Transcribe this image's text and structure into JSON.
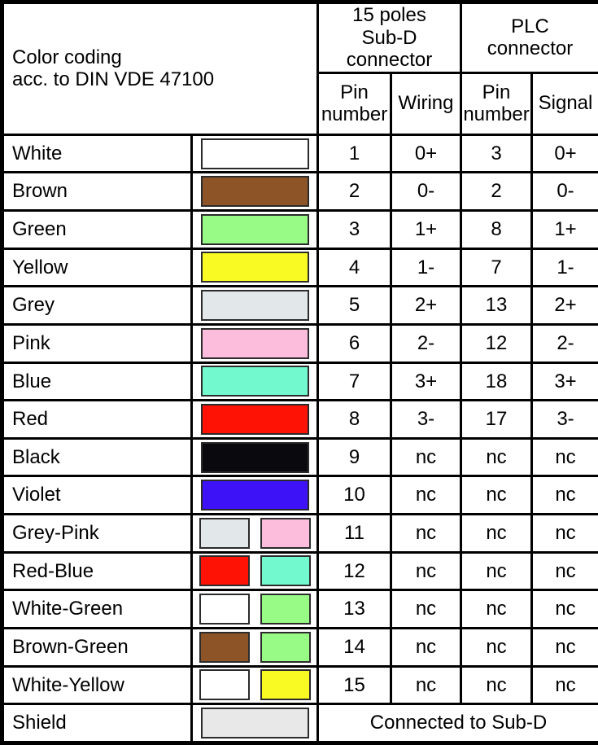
{
  "table": {
    "header": {
      "title": "Color coding\nacc. to DIN VDE 47100",
      "group_subd": "15 poles\nSub-D connector",
      "group_plc": "PLC\nconnector",
      "sub_pin_subd": "Pin\nnumber",
      "sub_wiring": "Wiring",
      "sub_pin_plc": "Pin\nnumber",
      "sub_signal": "Signal"
    },
    "rows": [
      {
        "name": "White",
        "swatches": [
          "#FFFFFF"
        ],
        "pin_subd": "1",
        "wiring": "0+",
        "pin_plc": "3",
        "signal": "0+"
      },
      {
        "name": "Brown",
        "swatches": [
          "#8C5427"
        ],
        "pin_subd": "2",
        "wiring": "0-",
        "pin_plc": "2",
        "signal": "0-"
      },
      {
        "name": "Green",
        "swatches": [
          "#97FB86"
        ],
        "pin_subd": "3",
        "wiring": "1+",
        "pin_plc": "8",
        "signal": "1+"
      },
      {
        "name": "Yellow",
        "swatches": [
          "#F9F923"
        ],
        "pin_subd": "4",
        "wiring": "1-",
        "pin_plc": "7",
        "signal": "1-"
      },
      {
        "name": "Grey",
        "swatches": [
          "#E2E8E9"
        ],
        "pin_subd": "5",
        "wiring": "2+",
        "pin_plc": "13",
        "signal": "2+"
      },
      {
        "name": "Pink",
        "swatches": [
          "#FCBCDB"
        ],
        "pin_subd": "6",
        "wiring": "2-",
        "pin_plc": "12",
        "signal": "2-"
      },
      {
        "name": "Blue",
        "swatches": [
          "#73F9CE"
        ],
        "pin_subd": "7",
        "wiring": "3+",
        "pin_plc": "18",
        "signal": "3+"
      },
      {
        "name": "Red",
        "swatches": [
          "#FD1205"
        ],
        "pin_subd": "8",
        "wiring": "3-",
        "pin_plc": "17",
        "signal": "3-"
      },
      {
        "name": "Black",
        "swatches": [
          "#0A0A0E"
        ],
        "pin_subd": "9",
        "wiring": "nc",
        "pin_plc": "nc",
        "signal": "nc"
      },
      {
        "name": "Violet",
        "swatches": [
          "#3D12F6"
        ],
        "pin_subd": "10",
        "wiring": "nc",
        "pin_plc": "nc",
        "signal": "nc"
      },
      {
        "name": "Grey-Pink",
        "swatches": [
          "#E2E8E9",
          "#FCBCDB"
        ],
        "pin_subd": "11",
        "wiring": "nc",
        "pin_plc": "nc",
        "signal": "nc"
      },
      {
        "name": "Red-Blue",
        "swatches": [
          "#FD1205",
          "#73F9CE"
        ],
        "pin_subd": "12",
        "wiring": "nc",
        "pin_plc": "nc",
        "signal": "nc"
      },
      {
        "name": "White-Green",
        "swatches": [
          "#FFFFFF",
          "#97FB86"
        ],
        "pin_subd": "13",
        "wiring": "nc",
        "pin_plc": "nc",
        "signal": "nc"
      },
      {
        "name": "Brown-Green",
        "swatches": [
          "#8C5427",
          "#97FB86"
        ],
        "pin_subd": "14",
        "wiring": "nc",
        "pin_plc": "nc",
        "signal": "nc"
      },
      {
        "name": "White-Yellow",
        "swatches": [
          "#FFFFFF",
          "#F9F923"
        ],
        "pin_subd": "15",
        "wiring": "nc",
        "pin_plc": "nc",
        "signal": "nc"
      },
      {
        "name": "Shield",
        "swatches": [
          "#E8E8E8"
        ],
        "span": "Connected to Sub-D"
      }
    ]
  }
}
